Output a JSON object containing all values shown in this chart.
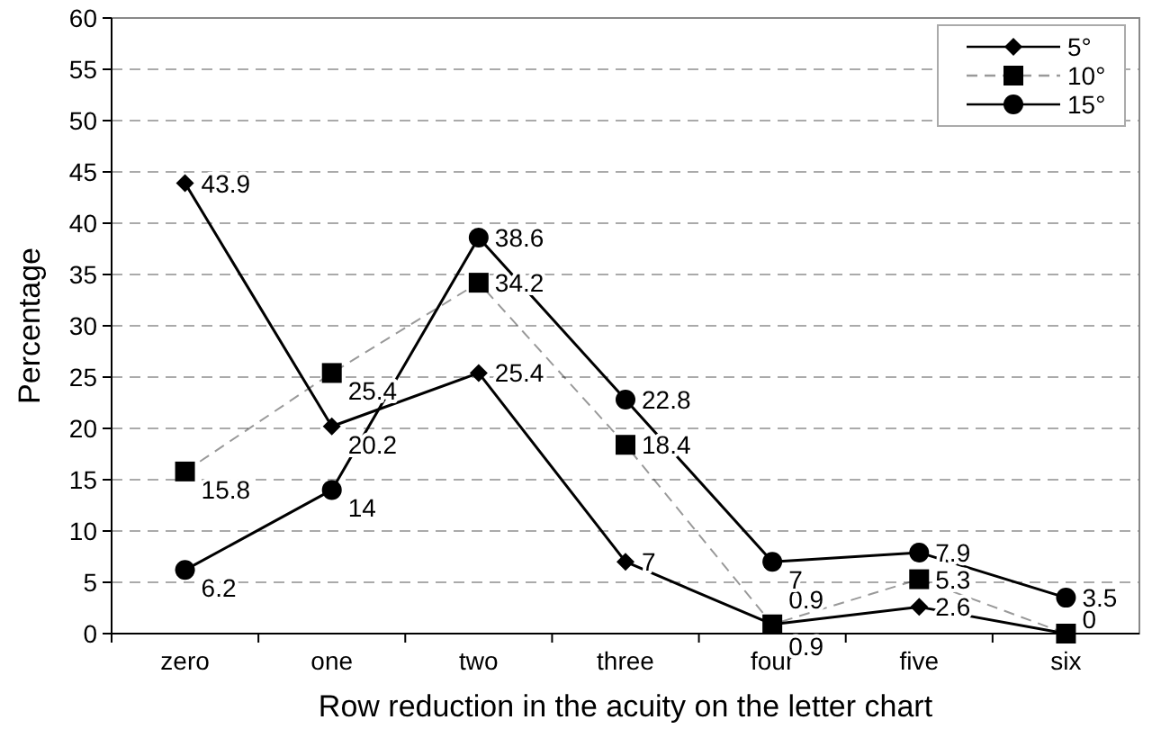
{
  "chart_data": {
    "type": "line",
    "xlabel": "Row reduction in the acuity on the letter chart",
    "ylabel": "Percentage",
    "categories": [
      "zero",
      "one",
      "two",
      "three",
      "four",
      "five",
      "six"
    ],
    "series": [
      {
        "name": "5°",
        "color": "#000000",
        "marker": "diamond",
        "line_style": "solid",
        "values": [
          43.9,
          20.2,
          25.4,
          7,
          0.9,
          2.6,
          0
        ],
        "value_labels": [
          "43.9",
          "20.2",
          "25.4",
          "7",
          "0.9",
          "2.6",
          null
        ]
      },
      {
        "name": "10°",
        "color": "#000000",
        "marker": "square",
        "line_style": "dashed",
        "values": [
          15.8,
          25.4,
          34.2,
          18.4,
          0.9,
          5.3,
          0
        ],
        "value_labels": [
          "15.8",
          "25.4",
          "34.2",
          "18.4",
          "0.9",
          "5.3",
          "0"
        ]
      },
      {
        "name": "15°",
        "color": "#000000",
        "marker": "circle",
        "line_style": "solid",
        "values": [
          6.2,
          14,
          38.6,
          22.8,
          7,
          7.9,
          3.5
        ],
        "value_labels": [
          "6.2",
          "14",
          "38.6",
          "22.8",
          "7",
          "7.9",
          "3.5"
        ]
      }
    ],
    "ylim": [
      0,
      60
    ],
    "yticks": [
      0,
      5,
      10,
      15,
      20,
      25,
      30,
      35,
      40,
      45,
      50,
      55,
      60
    ],
    "grid": "y",
    "legend": "top right"
  }
}
